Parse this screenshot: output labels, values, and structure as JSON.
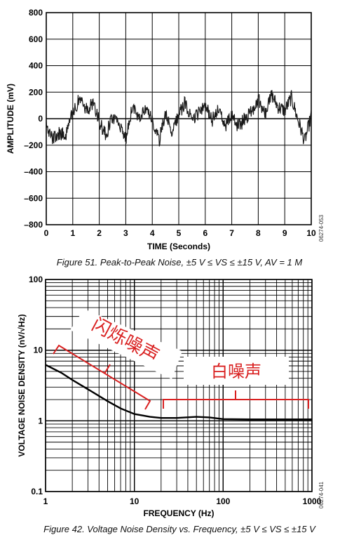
{
  "chart_data": [
    {
      "type": "line",
      "xlabel": "TIME (Seconds)",
      "ylabel": "AMPLITUDE (mV)",
      "xlim": [
        0,
        10
      ],
      "ylim": [
        -800,
        800
      ],
      "x_ticks": [
        "0",
        "1",
        "2",
        "3",
        "4",
        "5",
        "6",
        "7",
        "8",
        "9",
        "10"
      ],
      "y_ticks": [
        "800",
        "600",
        "400",
        "200",
        "0",
        "–200",
        "–400",
        "–600",
        "–800"
      ],
      "grid": true,
      "series": [
        {
          "x": [
            0,
            0.25,
            0.5,
            0.75,
            1.0,
            1.25,
            1.5,
            1.75,
            2.0,
            2.25,
            2.5,
            2.75,
            3.0,
            3.25,
            3.5,
            3.75,
            4.0,
            4.25,
            4.5,
            4.75,
            5.0,
            5.25,
            5.5,
            5.75,
            6.0,
            6.25,
            6.5,
            6.75,
            7.0,
            7.25,
            7.5,
            7.75,
            8.0,
            8.25,
            8.5,
            8.75,
            9.0,
            9.25,
            9.5,
            9.75,
            10.0
          ],
          "values": [
            -60,
            -150,
            -110,
            -130,
            50,
            150,
            60,
            120,
            -20,
            -130,
            20,
            -60,
            -150,
            90,
            20,
            80,
            -20,
            -170,
            30,
            -110,
            40,
            120,
            -30,
            50,
            110,
            -20,
            80,
            -70,
            30,
            -60,
            0,
            60,
            150,
            30,
            180,
            90,
            60,
            160,
            -10,
            -170,
            20
          ]
        }
      ],
      "figure_caption": "Figure 51. Peak-to-Peak Noise, ±5 V ≤ VS ≤ ±15 V, AV = 1 M",
      "side_id": "06274-053"
    },
    {
      "type": "line",
      "xlabel": "FREQUENCY (Hz)",
      "ylabel": "VOLTAGE NOISE DENSITY (nV/√Hz)",
      "x_scale": "log",
      "y_scale": "log",
      "xlim": [
        1,
        1000
      ],
      "ylim": [
        0.1,
        100
      ],
      "x_ticks": [
        "1",
        "10",
        "100",
        "1000"
      ],
      "y_ticks": [
        "100",
        "10",
        "1",
        "0.1"
      ],
      "grid": true,
      "series": [
        {
          "x": [
            1,
            1.5,
            2,
            3,
            5,
            7,
            10,
            15,
            20,
            30,
            50,
            70,
            100,
            200,
            500,
            1000
          ],
          "values": [
            6.2,
            4.8,
            3.8,
            2.8,
            1.9,
            1.5,
            1.25,
            1.14,
            1.1,
            1.1,
            1.14,
            1.12,
            1.06,
            1.05,
            1.05,
            1.05
          ]
        }
      ],
      "annotations": [
        "闪烁噪声",
        "白噪声"
      ],
      "figure_caption": "Figure 42. Voltage Noise Density vs. Frequency, ±5 V ≤ VS ≤ ±15 V",
      "side_id": "06274-041"
    }
  ],
  "colors": {
    "trace": "#1a1a1a",
    "grid": "#000000",
    "annotation": "#d92020"
  }
}
